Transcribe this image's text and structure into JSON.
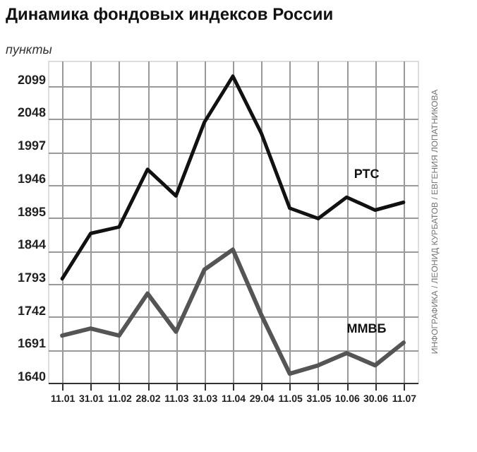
{
  "chart_data": {
    "type": "line",
    "title": "Динамика фондовых индексов России",
    "ylabel": "пункты",
    "categories": [
      "11.01",
      "31.01",
      "11.02",
      "28.02",
      "11.03",
      "31.03",
      "11.04",
      "29.04",
      "11.05",
      "31.05",
      "10.06",
      "30.06",
      "11.07"
    ],
    "series": [
      {
        "name": "РТС",
        "color": "#111111",
        "values": [
          1801,
          1871,
          1881,
          1970,
          1929,
          2043,
          2114,
          2026,
          1910,
          1894,
          1927,
          1907,
          1919
        ]
      },
      {
        "name": "ММВБ",
        "color": "#555555",
        "values": [
          1713,
          1724,
          1713,
          1778,
          1719,
          1815,
          1846,
          1745,
          1654,
          1667,
          1686,
          1667,
          1702
        ]
      }
    ],
    "ylim": [
      1640,
      2138
    ],
    "yticks": [
      1640,
      1691,
      1742,
      1793,
      1844,
      1895,
      1946,
      1997,
      2048,
      2099
    ],
    "grid": true,
    "marker": "none",
    "line_style": "solid",
    "annotations": [
      "ИНФОГРАФИКА / ЛЕОНИД КУРБАТОВ / ЕВГЕНИЯ ЛОПАТНИКОВА"
    ]
  }
}
